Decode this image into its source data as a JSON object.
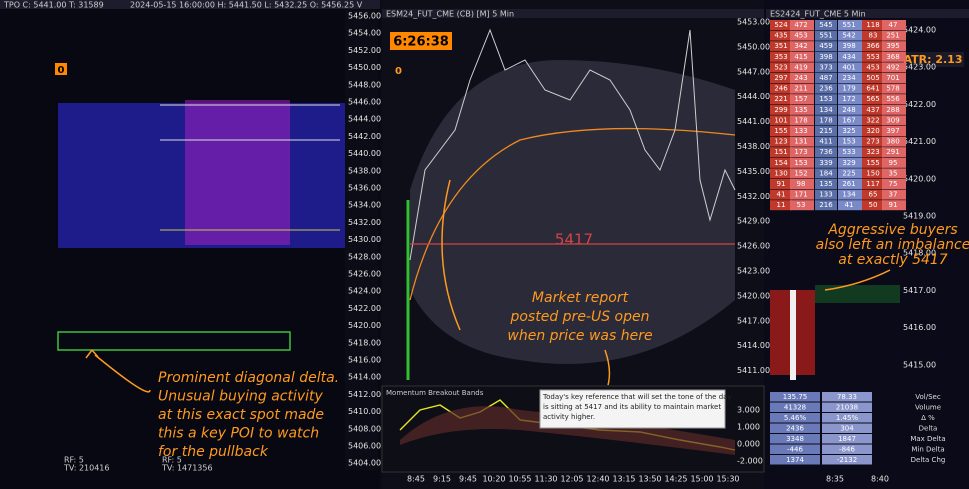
{
  "left_panel": {
    "header": "TPO C: 5441.00 T: 31589",
    "header_detail": "2024-05-15 16:00:00 H: 5441.50 L: 5432.25 O: 5456.25 V",
    "marker": "0",
    "price_labels": [
      "5456.00",
      "5454.00",
      "5452.00",
      "5450.00",
      "5448.00",
      "5446.00",
      "5444.00",
      "5442.00",
      "5440.00",
      "5438.00",
      "5436.00",
      "5434.00",
      "5432.00",
      "5430.00",
      "5428.00",
      "5426.00",
      "5424.00",
      "5422.00",
      "5420.00",
      "5418.00",
      "5416.00",
      "5414.00",
      "5412.00",
      "5410.00",
      "5408.00",
      "5406.00",
      "5404.00"
    ],
    "callout": [
      "Prominent diagonal delta.",
      "Unusual buying activity",
      "at this exact spot made",
      "this a key POI to watch",
      "for the pullback"
    ],
    "footer_a": [
      "RF: 5",
      "TV: 210416"
    ],
    "footer_b": [
      "RF: 5",
      "TV: 1471356"
    ]
  },
  "middle_panel": {
    "header": "ESM24_FUT_CME (CB) [M] 5 Min",
    "timer": "6:26:38",
    "marker": "0",
    "level": "5417",
    "callout": [
      "Market report",
      "posted pre-US open",
      "when price was here"
    ],
    "price_labels": [
      "5453.00",
      "5450.00",
      "5447.00",
      "5444.00",
      "5441.00",
      "5438.00",
      "5435.00",
      "5432.00",
      "5429.00",
      "5426.00",
      "5423.00",
      "5420.00",
      "5417.00",
      "5414.00",
      "5411.00"
    ],
    "indicator": "Momentum Breakout Bands",
    "note": [
      "Today's key reference that will set the tone of the day",
      "is sitting at 5417 and its ability to maintain market",
      "activity higher."
    ],
    "momentum_labels": [
      "3.000",
      "1.000",
      "0.000",
      "-2.000"
    ],
    "time_labels": [
      "8:45",
      "9:15",
      "9:45",
      "10:20",
      "10:55",
      "11:30",
      "12:05",
      "12:40",
      "13:15",
      "13:50",
      "14:25",
      "15:00",
      "15:30"
    ]
  },
  "right_panel": {
    "header": "ES2424_FUT_CME 5 Min",
    "atr": "ATR: 2.13",
    "callout": [
      "Aggressive buyers",
      "also left an imbalance",
      "at exactly 5417"
    ],
    "price_labels": [
      "5424.00",
      "5423.00",
      "5422.00",
      "5421.00",
      "5420.00",
      "5419.00",
      "5418.00",
      "5417.00",
      "5416.00",
      "5415.00"
    ],
    "footprint": [
      [
        "524",
        "472",
        "545",
        "551",
        "118",
        "47"
      ],
      [
        "435",
        "453",
        "551",
        "542",
        "83",
        "251"
      ],
      [
        "351",
        "342",
        "459",
        "398",
        "366",
        "395"
      ],
      [
        "353",
        "415",
        "398",
        "434",
        "553",
        "368"
      ],
      [
        "523",
        "419",
        "373",
        "401",
        "453",
        "492"
      ],
      [
        "297",
        "243",
        "487",
        "234",
        "505",
        "701"
      ],
      [
        "246",
        "211",
        "236",
        "179",
        "641",
        "578"
      ],
      [
        "221",
        "157",
        "153",
        "172",
        "565",
        "556"
      ],
      [
        "299",
        "135",
        "134",
        "248",
        "437",
        "288"
      ],
      [
        "101",
        "178",
        "178",
        "167",
        "322",
        "309"
      ],
      [
        "155",
        "133",
        "215",
        "325",
        "320",
        "397"
      ],
      [
        "123",
        "131",
        "411",
        "153",
        "273",
        "380"
      ],
      [
        "151",
        "173",
        "736",
        "533",
        "323",
        "291"
      ],
      [
        "154",
        "153",
        "339",
        "329",
        "155",
        "95"
      ],
      [
        "130",
        "152",
        "184",
        "225",
        "150",
        "35"
      ],
      [
        "91",
        "98",
        "135",
        "261",
        "117",
        "75"
      ],
      [
        "41",
        "171",
        "133",
        "134",
        "65",
        "37"
      ],
      [
        "11",
        "53",
        "216",
        "41",
        "50",
        "91"
      ]
    ],
    "stats": [
      {
        "label": "Vol/Sec",
        "a": "135.75",
        "b": "78.33"
      },
      {
        "label": "Volume",
        "a": "41328",
        "b": "21038"
      },
      {
        "label": "Δ %",
        "a": "5.46%",
        "b": "1.45%"
      },
      {
        "label": "Delta",
        "a": "2436",
        "b": "304"
      },
      {
        "label": "Max Delta",
        "a": "3348",
        "b": "1847"
      },
      {
        "label": "Min Delta",
        "a": "-446",
        "b": "-846"
      },
      {
        "label": "Delta Chg",
        "a": "1374",
        "b": "-2132"
      }
    ],
    "time_labels": [
      "8:35",
      "8:40"
    ]
  }
}
